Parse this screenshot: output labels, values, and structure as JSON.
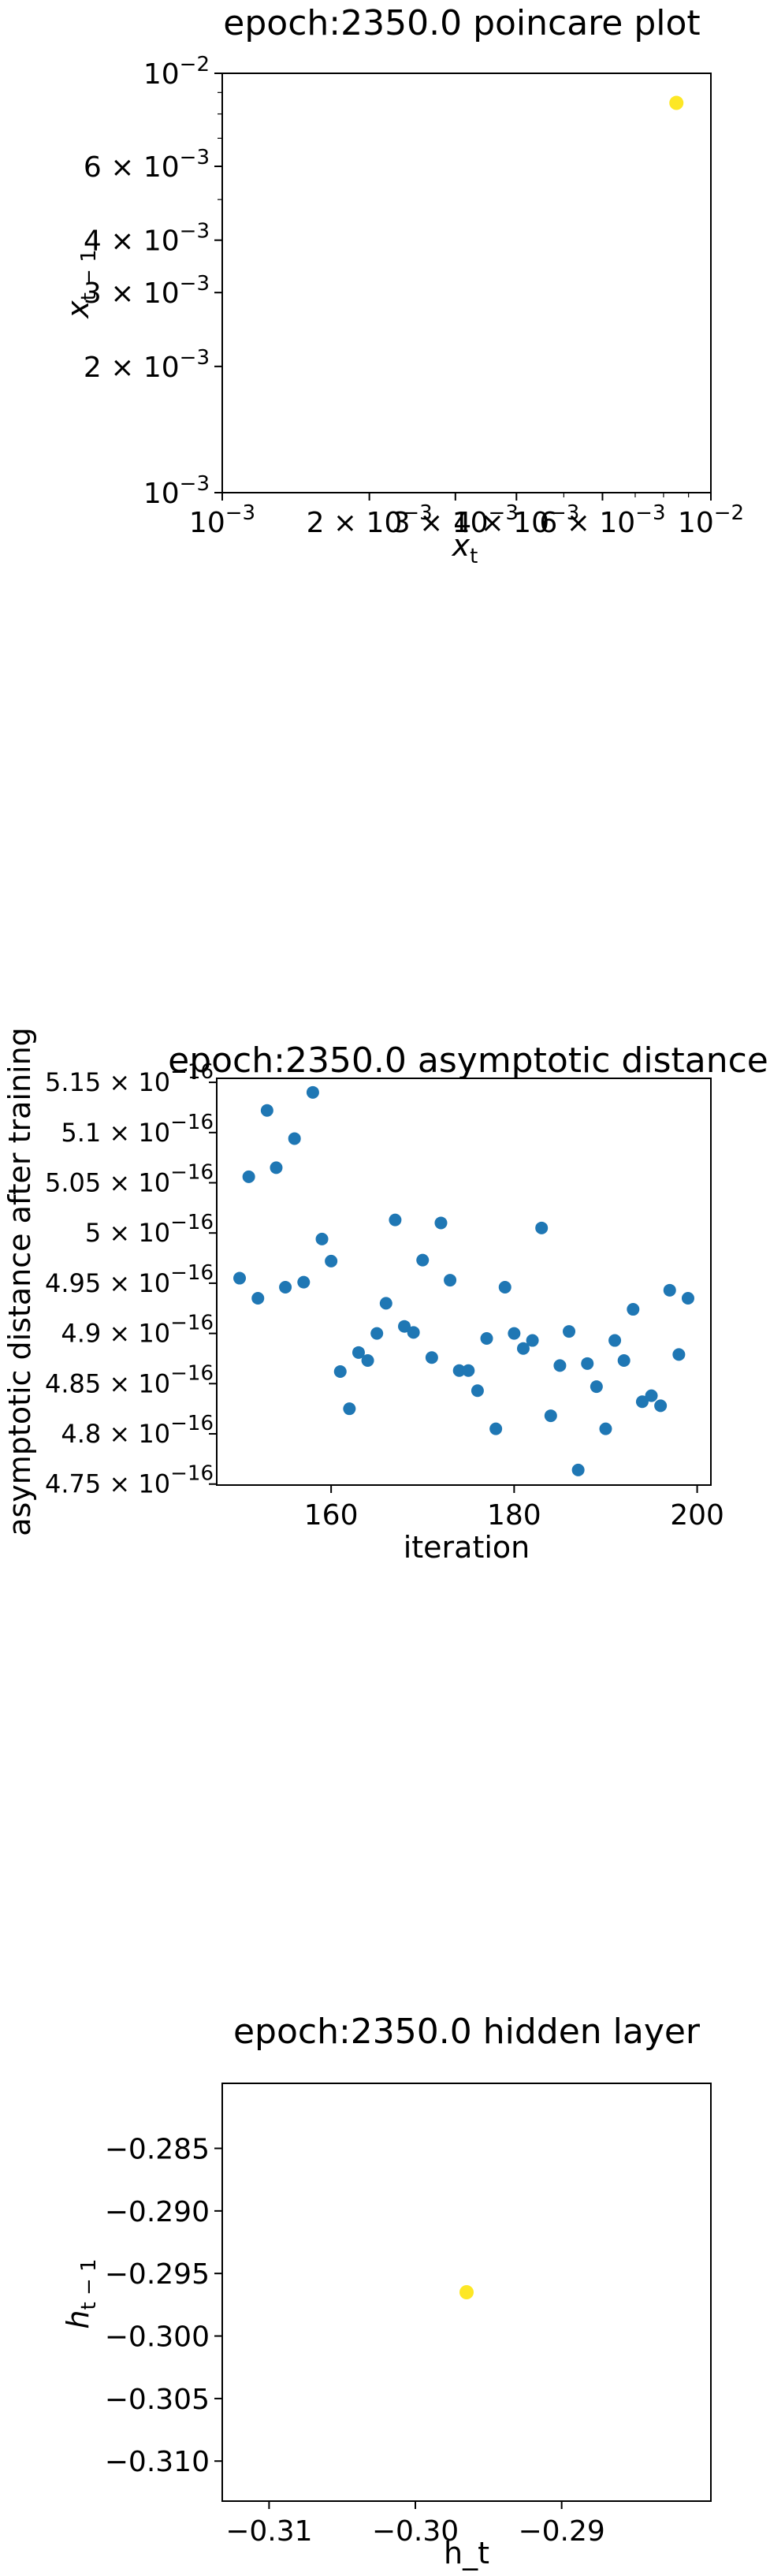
{
  "chart_data": [
    {
      "type": "scatter",
      "title": "epoch:2350.0 poincare plot",
      "xlabel_base": "x",
      "xlabel_sub": "t",
      "ylabel_base": "x",
      "ylabel_sub": "t − 1",
      "xscale": "log",
      "yscale": "log",
      "xlim": [
        0.001,
        0.01
      ],
      "ylim": [
        0.001,
        0.01
      ],
      "x_ticks": [
        {
          "v": 0.001,
          "m": "10",
          "e": "−3"
        },
        {
          "v": 0.002,
          "m": "2 × 10",
          "e": "−3"
        },
        {
          "v": 0.003,
          "m": "3 × 10",
          "e": "−3"
        },
        {
          "v": 0.004,
          "m": "4 × 10",
          "e": "−3"
        },
        {
          "v": 0.006,
          "m": "6 × 10",
          "e": "−3"
        },
        {
          "v": 0.01,
          "m": "10",
          "e": "−2"
        }
      ],
      "y_ticks": [
        {
          "v": 0.001,
          "m": "10",
          "e": "−3"
        },
        {
          "v": 0.002,
          "m": "2 × 10",
          "e": "−3"
        },
        {
          "v": 0.003,
          "m": "3 × 10",
          "e": "−3"
        },
        {
          "v": 0.004,
          "m": "4 × 10",
          "e": "−3"
        },
        {
          "v": 0.006,
          "m": "6 × 10",
          "e": "−3"
        },
        {
          "v": 0.01,
          "m": "10",
          "e": "−2"
        }
      ],
      "points": [
        {
          "x": 0.0085,
          "y": 0.0085
        }
      ],
      "marker_color": "#fde725",
      "grid": false
    },
    {
      "type": "scatter",
      "title": "epoch:2350.0 asymptotic distance",
      "xlabel": "iteration",
      "ylabel": "asymptotic distance after training",
      "xlim": [
        147.5,
        201.5
      ],
      "ylim": [
        4.749e-16,
        5.154e-16
      ],
      "x_ticks": [
        {
          "v": 160,
          "label": "160"
        },
        {
          "v": 180,
          "label": "180"
        },
        {
          "v": 200,
          "label": "200"
        }
      ],
      "y_ticks": [
        {
          "v": 4.75e-16,
          "m": "4.75 × 10",
          "e": "−16"
        },
        {
          "v": 4.8e-16,
          "m": "4.8 × 10",
          "e": "−16"
        },
        {
          "v": 4.85e-16,
          "m": "4.85 × 10",
          "e": "−16"
        },
        {
          "v": 4.9e-16,
          "m": "4.9 × 10",
          "e": "−16"
        },
        {
          "v": 4.95e-16,
          "m": "4.95 × 10",
          "e": "−16"
        },
        {
          "v": 5e-16,
          "m": "5 × 10",
          "e": "−16"
        },
        {
          "v": 5.05e-16,
          "m": "5.05 × 10",
          "e": "−16"
        },
        {
          "v": 5.1e-16,
          "m": "5.1 × 10",
          "e": "−16"
        },
        {
          "v": 5.15e-16,
          "m": "5.15 × 10",
          "e": "−16"
        }
      ],
      "x": [
        150,
        151,
        152,
        153,
        154,
        155,
        156,
        157,
        158,
        159,
        160,
        161,
        162,
        163,
        164,
        165,
        166,
        167,
        168,
        169,
        170,
        171,
        172,
        173,
        174,
        175,
        176,
        177,
        178,
        179,
        180,
        181,
        182,
        183,
        184,
        185,
        186,
        187,
        188,
        189,
        190,
        191,
        192,
        193,
        194,
        195,
        196,
        197,
        198,
        199
      ],
      "y": [
        4.955e-16,
        5.056e-16,
        4.935e-16,
        5.122e-16,
        5.065e-16,
        4.946e-16,
        5.094e-16,
        4.951e-16,
        5.14e-16,
        4.994e-16,
        4.972e-16,
        4.862e-16,
        4.825e-16,
        4.881e-16,
        4.873e-16,
        4.9e-16,
        4.93e-16,
        5.013e-16,
        4.907e-16,
        4.901e-16,
        4.973e-16,
        4.876e-16,
        5.01e-16,
        4.953e-16,
        4.863e-16,
        4.863e-16,
        4.843e-16,
        4.895e-16,
        4.805e-16,
        4.946e-16,
        4.9e-16,
        4.885e-16,
        4.893e-16,
        5.005e-16,
        4.818e-16,
        4.868e-16,
        4.902e-16,
        4.764e-16,
        4.87e-16,
        4.847e-16,
        4.805e-16,
        4.893e-16,
        4.873e-16,
        4.924e-16,
        4.832e-16,
        4.838e-16,
        4.828e-16,
        4.943e-16,
        4.879e-16,
        4.935e-16
      ],
      "marker_color": "#1f77b4",
      "grid": false
    },
    {
      "type": "scatter",
      "title": "epoch:2350.0 hidden layer",
      "xlabel": "h_t",
      "ylabel_base": "h",
      "ylabel_sub": "t − 1",
      "xlim": [
        -0.3132,
        -0.2798
      ],
      "ylim": [
        -0.3132,
        -0.2798
      ],
      "x_ticks": [
        {
          "v": -0.31,
          "label": "−0.31"
        },
        {
          "v": -0.3,
          "label": "−0.30"
        },
        {
          "v": -0.29,
          "label": "−0.29"
        }
      ],
      "y_ticks": [
        {
          "v": -0.285,
          "label": "−0.285"
        },
        {
          "v": -0.29,
          "label": "−0.290"
        },
        {
          "v": -0.295,
          "label": "−0.295"
        },
        {
          "v": -0.3,
          "label": "−0.300"
        },
        {
          "v": -0.305,
          "label": "−0.305"
        },
        {
          "v": -0.31,
          "label": "−0.310"
        }
      ],
      "points": [
        {
          "x": -0.2965,
          "y": -0.2965
        }
      ],
      "marker_color": "#fde725",
      "grid": false
    }
  ]
}
